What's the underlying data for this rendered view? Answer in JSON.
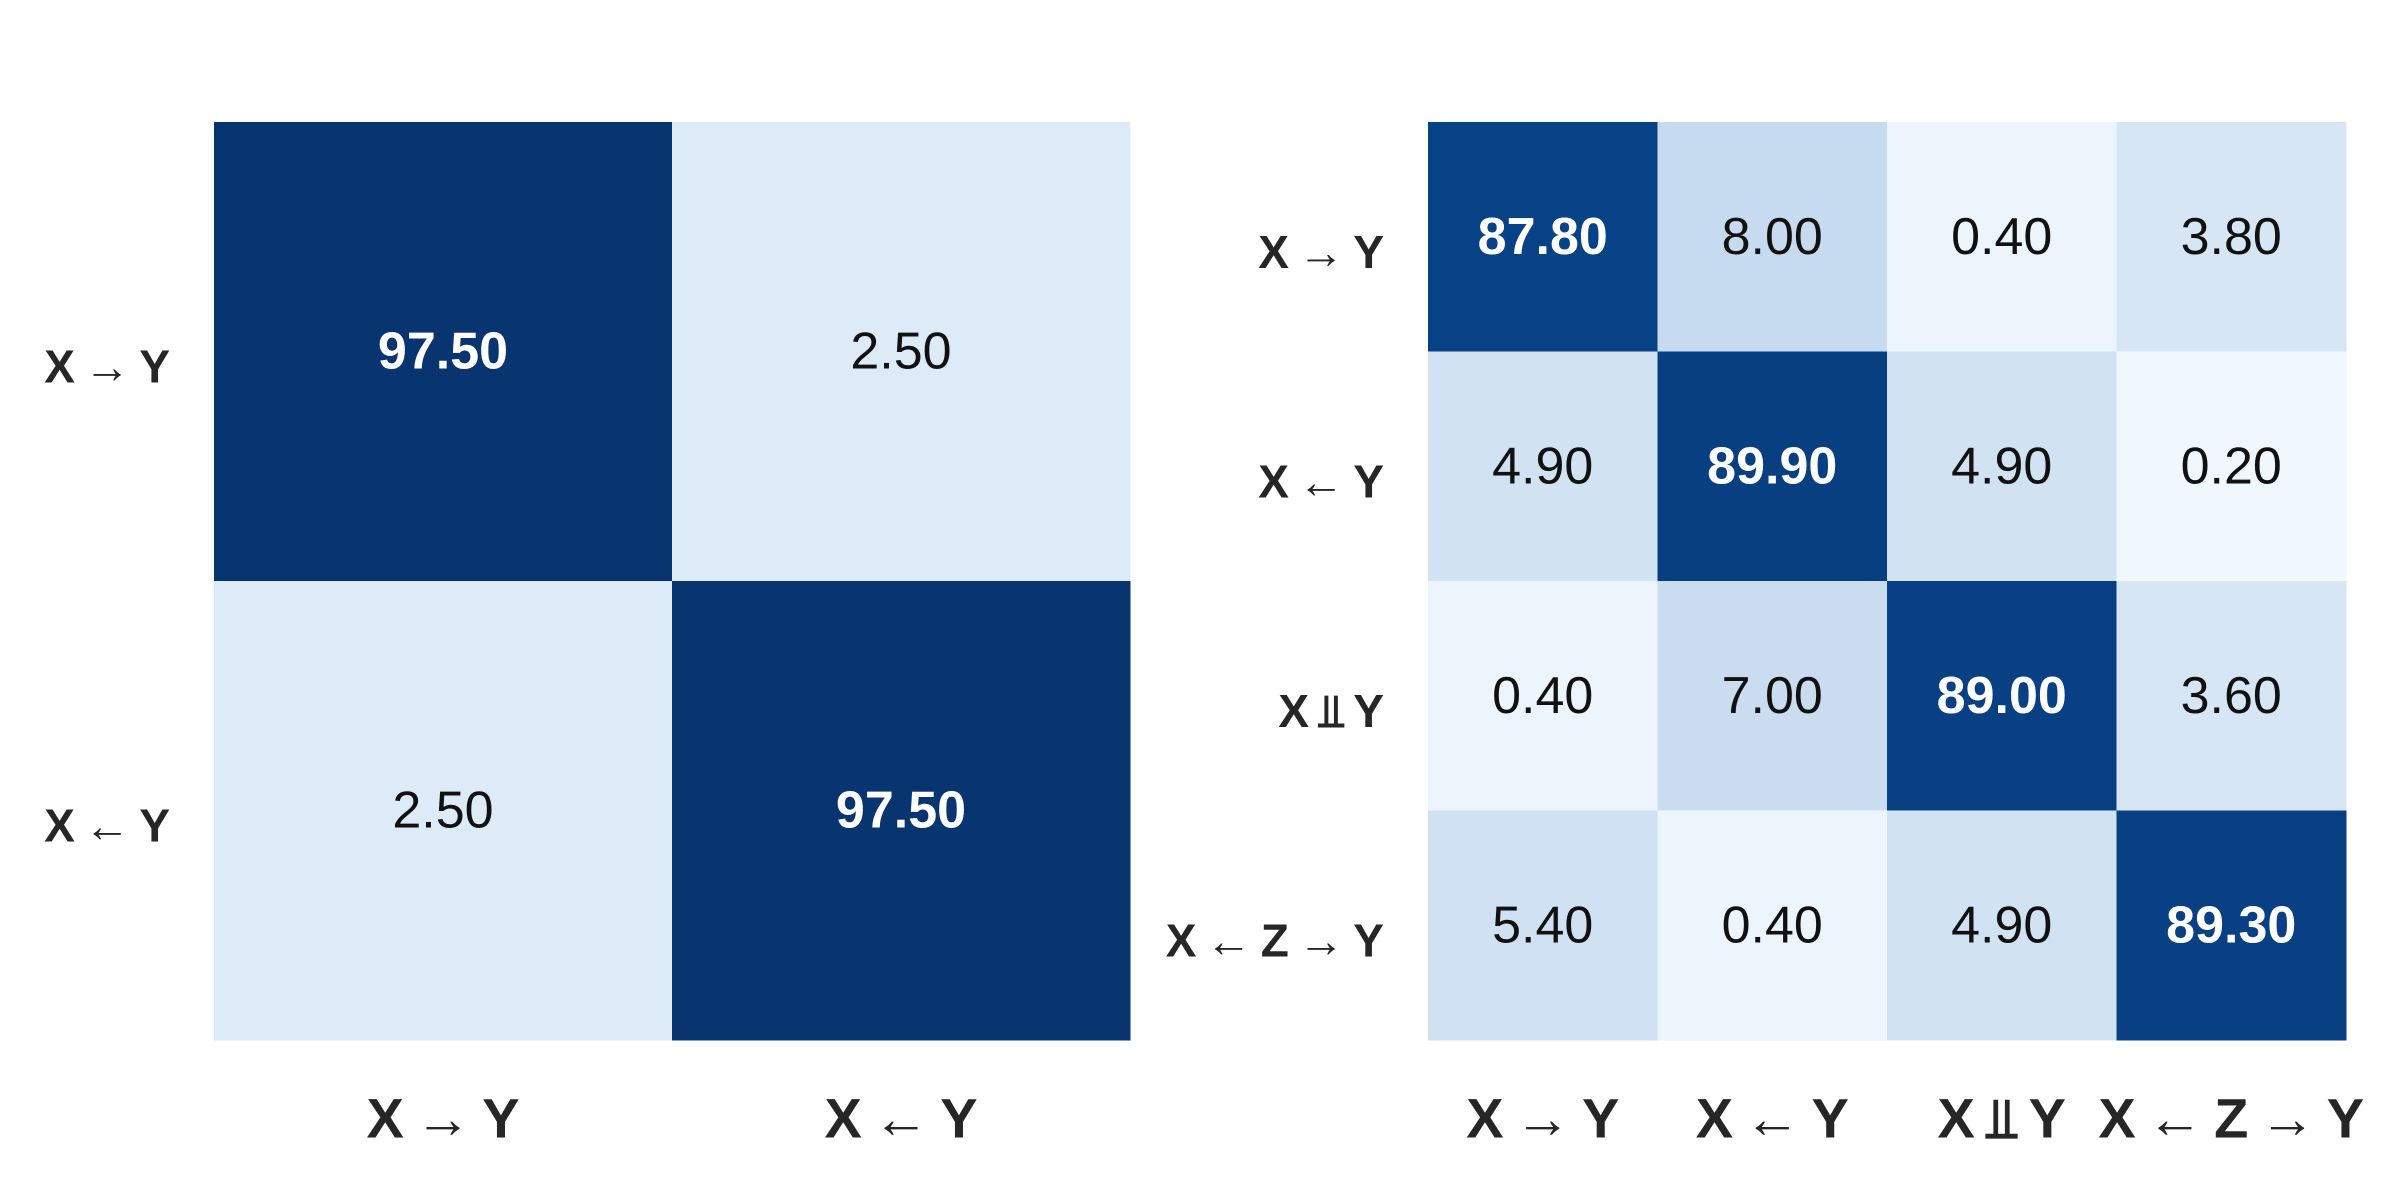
{
  "chart_data": [
    {
      "type": "heatmap",
      "row_labels": [
        "X → Y",
        "X ← Y"
      ],
      "col_labels": [
        "X → Y",
        "X ← Y"
      ],
      "values": [
        [
          97.5,
          2.5
        ],
        [
          2.5,
          97.5
        ]
      ],
      "value_format": "2dp",
      "colormap": "Blues",
      "color_range": [
        0,
        100
      ],
      "colorbar": false
    },
    {
      "type": "heatmap",
      "row_labels": [
        "X → Y",
        "X ← Y",
        "X ⫫ Y",
        "X ← Z → Y"
      ],
      "col_labels": [
        "X → Y",
        "X ← Y",
        "X ⫫ Y",
        "X ← Z → Y"
      ],
      "values": [
        [
          87.8,
          8.0,
          0.4,
          3.8
        ],
        [
          4.9,
          89.9,
          4.9,
          0.2
        ],
        [
          0.4,
          7.0,
          89.0,
          3.6
        ],
        [
          5.4,
          0.4,
          4.9,
          89.3
        ]
      ],
      "value_format": "2dp",
      "colormap": "Blues",
      "color_range": [
        0,
        100
      ],
      "colorbar": false
    }
  ],
  "colors": {
    "low": "#f7fbff",
    "mid": "#c6dbef",
    "high": "#08306b",
    "label_text": "#262626"
  }
}
